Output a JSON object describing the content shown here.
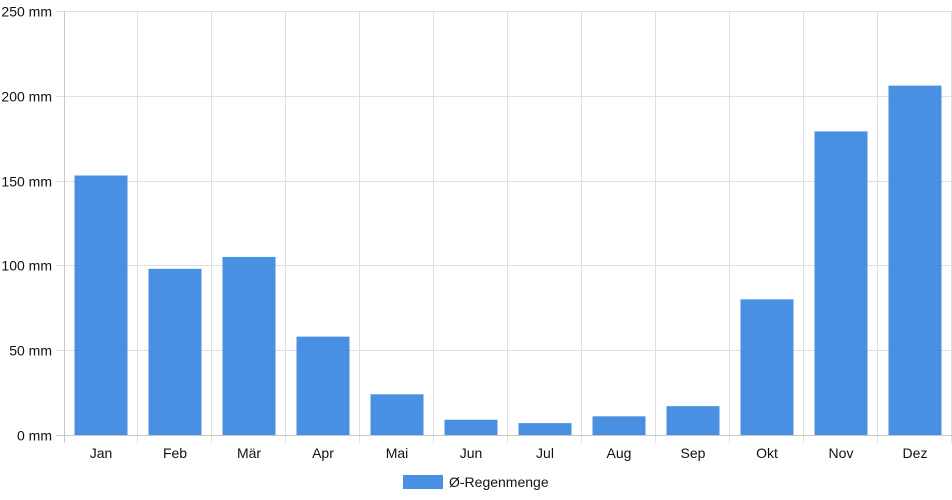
{
  "chart_data": {
    "type": "bar",
    "categories": [
      "Jan",
      "Feb",
      "Mär",
      "Apr",
      "Mai",
      "Jun",
      "Jul",
      "Aug",
      "Sep",
      "Okt",
      "Nov",
      "Dez"
    ],
    "series": [
      {
        "name": "Ø-Regenmenge",
        "color": "#4a90e2",
        "values": [
          153,
          98,
          105,
          58,
          24,
          9,
          7,
          11,
          17,
          80,
          179,
          206
        ]
      }
    ],
    "ylim": [
      0,
      250
    ],
    "yticks": [
      0,
      50,
      100,
      150,
      200,
      250
    ],
    "ytick_labels": [
      "0 mm",
      "50 mm",
      "100 mm",
      "150 mm",
      "200 mm",
      "250 mm"
    ],
    "grid": true,
    "legend_position": "bottom-center"
  }
}
